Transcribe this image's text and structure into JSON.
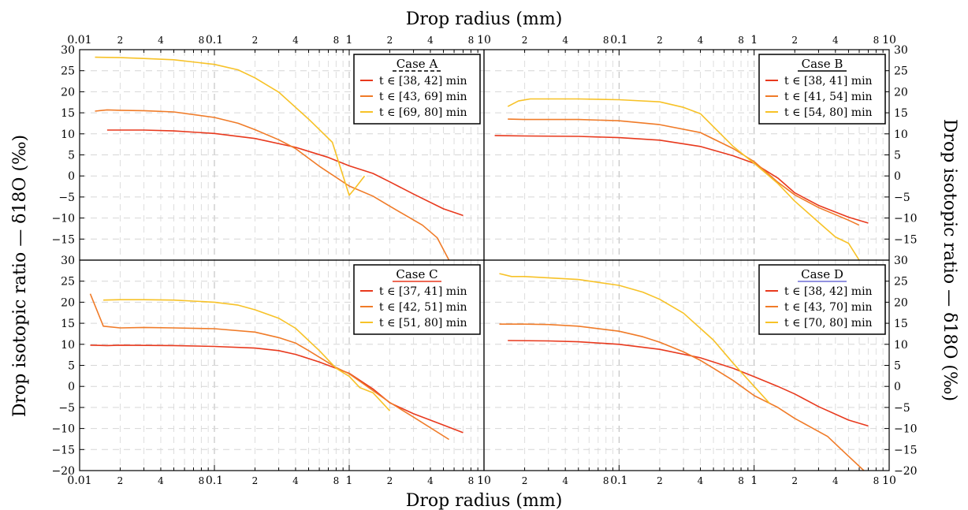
{
  "figure": {
    "top_xlabel": "Drop radius (mm)",
    "bottom_xlabel": "Drop radius (mm)",
    "left_ylabel": "Drop isotopic ratio — δ18O (‰)",
    "right_ylabel": "Drop isotopic ratio — δ18O (‰)"
  },
  "colors": {
    "red": "#e8391d",
    "orange": "#f07b28",
    "yellow": "#f7c227"
  },
  "axes": {
    "x_scale": "log",
    "xlim": [
      0.01,
      10
    ],
    "x_major_labels": [
      "0.01",
      "0.1",
      "1",
      "10"
    ],
    "x_minor_labels": [
      "2",
      "4",
      "8"
    ],
    "x_major_labels_right": [
      "",
      "0.1",
      "1",
      "10"
    ],
    "ylim_top": [
      -20,
      30
    ],
    "ylim_bottom": [
      -20,
      30
    ],
    "yticks_top_panels": [
      "30",
      "25",
      "20",
      "15",
      "10",
      "5",
      "0",
      "−5",
      "−10",
      "−15"
    ],
    "yticks_bottom_panels": [
      "30",
      "25",
      "20",
      "15",
      "10",
      "5",
      "0",
      "−5",
      "−10",
      "−15",
      "−20"
    ],
    "grid": true
  },
  "chart_data": [
    {
      "type": "line",
      "title": "Case A",
      "title_underline_color": "#000000",
      "legend_position": "top-right",
      "series": [
        {
          "name": "t ∈ [38, 42] min",
          "color": "#e8391d",
          "x": [
            0.016,
            0.03,
            0.05,
            0.1,
            0.2,
            0.4,
            0.7,
            1.0,
            1.5,
            2,
            3,
            5,
            7
          ],
          "y": [
            10.9,
            10.9,
            10.7,
            10.1,
            8.9,
            6.8,
            4.4,
            2.4,
            0.6,
            -1.4,
            -4.3,
            -7.8,
            -9.4
          ]
        },
        {
          "name": "t ∈ [43, 69] min",
          "color": "#f07b28",
          "x": [
            0.013,
            0.016,
            0.02,
            0.03,
            0.05,
            0.1,
            0.15,
            0.2,
            0.3,
            0.4,
            0.6,
            1.0,
            1.5,
            2.0,
            3.5,
            4.5,
            5.5
          ],
          "y": [
            15.4,
            15.7,
            15.6,
            15.5,
            15.2,
            13.9,
            12.5,
            11.0,
            8.6,
            6.5,
            2.3,
            -2.4,
            -4.8,
            -7.2,
            -11.7,
            -14.7,
            -20
          ]
        },
        {
          "name": "t ∈ [69, 80] min",
          "color": "#f7c227",
          "x": [
            0.013,
            0.02,
            0.03,
            0.05,
            0.1,
            0.15,
            0.2,
            0.3,
            0.5,
            0.75,
            1.0,
            1.1,
            1.3
          ],
          "y": [
            28.2,
            28.1,
            27.9,
            27.6,
            26.5,
            25.2,
            23.3,
            19.9,
            13.5,
            8.0,
            -4.6,
            -3.0,
            0.0
          ]
        }
      ]
    },
    {
      "type": "line",
      "title": "Case B",
      "title_underline_color": "#000000",
      "legend_position": "top-right",
      "series": [
        {
          "name": "t ∈ [38, 41] min",
          "color": "#e8391d",
          "x": [
            0.012,
            0.02,
            0.05,
            0.1,
            0.2,
            0.4,
            0.7,
            1.0,
            1.5,
            2,
            3,
            5,
            7
          ],
          "y": [
            9.6,
            9.5,
            9.4,
            9.1,
            8.5,
            7.0,
            4.8,
            3.0,
            -0.5,
            -4.0,
            -7.0,
            -9.8,
            -11.2
          ]
        },
        {
          "name": "t ∈ [41, 54] min",
          "color": "#f07b28",
          "x": [
            0.015,
            0.02,
            0.05,
            0.1,
            0.2,
            0.4,
            0.7,
            1.0,
            1.5,
            2,
            3,
            5,
            6
          ],
          "y": [
            13.5,
            13.4,
            13.4,
            13.1,
            12.2,
            10.3,
            6.5,
            3.4,
            -1.5,
            -4.5,
            -7.5,
            -10.5,
            -11.7
          ]
        },
        {
          "name": "t ∈ [54, 80] min",
          "color": "#f7c227",
          "x": [
            0.015,
            0.018,
            0.022,
            0.03,
            0.05,
            0.1,
            0.2,
            0.3,
            0.4,
            0.7,
            1.0,
            1.5,
            2,
            3,
            4,
            5,
            6
          ],
          "y": [
            16.5,
            17.8,
            18.3,
            18.3,
            18.3,
            18.1,
            17.6,
            16.3,
            14.8,
            7.0,
            3.0,
            -1.8,
            -6.0,
            -11.0,
            -14.5,
            -16.0,
            -20
          ]
        }
      ]
    },
    {
      "type": "line",
      "title": "Case C",
      "title_underline_color": "#e8391d",
      "legend_position": "top-right",
      "series": [
        {
          "name": "t ∈ [37, 41] min",
          "color": "#e8391d",
          "x": [
            0.012,
            0.016,
            0.02,
            0.05,
            0.1,
            0.2,
            0.3,
            0.4,
            0.6,
            0.8,
            1.0,
            1.5,
            2,
            3,
            5,
            7
          ],
          "y": [
            9.8,
            9.7,
            9.8,
            9.7,
            9.5,
            9.1,
            8.5,
            7.6,
            5.8,
            4.3,
            3.1,
            -0.6,
            -3.9,
            -6.5,
            -9.2,
            -11.0
          ]
        },
        {
          "name": "t ∈ [42, 51] min",
          "color": "#f07b28",
          "x": [
            0.012,
            0.015,
            0.02,
            0.03,
            0.05,
            0.1,
            0.2,
            0.3,
            0.4,
            0.5,
            0.8,
            1.0,
            1.5,
            2,
            3,
            5.5
          ],
          "y": [
            22.0,
            14.3,
            13.9,
            14.0,
            13.9,
            13.7,
            12.9,
            11.6,
            10.3,
            8.5,
            4.5,
            3.0,
            -1.0,
            -3.8,
            -7.3,
            -12.6
          ]
        },
        {
          "name": "t ∈ [51, 80] min",
          "color": "#f7c227",
          "x": [
            0.015,
            0.02,
            0.03,
            0.05,
            0.1,
            0.15,
            0.2,
            0.3,
            0.4,
            0.6,
            0.8,
            1.0,
            1.2,
            1.5,
            2.0
          ],
          "y": [
            20.5,
            20.6,
            20.6,
            20.5,
            20.0,
            19.3,
            18.2,
            16.2,
            13.8,
            8.5,
            4.3,
            2.4,
            -0.3,
            -1.5,
            -5.8
          ]
        }
      ]
    },
    {
      "type": "line",
      "title": "Case D",
      "title_underline_color": "#6f6fd6",
      "legend_position": "top-right",
      "series": [
        {
          "name": "t ∈ [38, 42] min",
          "color": "#e8391d",
          "x": [
            0.015,
            0.03,
            0.05,
            0.1,
            0.2,
            0.4,
            0.7,
            1.0,
            1.5,
            2,
            3,
            5,
            7
          ],
          "y": [
            10.9,
            10.8,
            10.6,
            10.0,
            8.8,
            6.8,
            4.3,
            2.3,
            0.0,
            -1.8,
            -4.8,
            -8.0,
            -9.4
          ]
        },
        {
          "name": "t ∈ [43, 70] min",
          "color": "#f07b28",
          "x": [
            0.013,
            0.02,
            0.03,
            0.05,
            0.1,
            0.15,
            0.2,
            0.3,
            0.4,
            0.5,
            0.7,
            1.0,
            1.5,
            2,
            3.5,
            4.5,
            6.5
          ],
          "y": [
            14.8,
            14.8,
            14.7,
            14.3,
            13.1,
            11.8,
            10.5,
            8.2,
            6.2,
            4.3,
            1.4,
            -2.2,
            -5.0,
            -7.6,
            -11.9,
            -15.2,
            -20
          ]
        },
        {
          "name": "t ∈ [70, 80] min",
          "color": "#f7c227",
          "x": [
            0.013,
            0.016,
            0.02,
            0.05,
            0.1,
            0.15,
            0.2,
            0.3,
            0.5,
            0.7,
            1.0,
            1.3
          ],
          "y": [
            26.8,
            26.1,
            26.1,
            25.4,
            24.0,
            22.4,
            20.7,
            17.4,
            11.0,
            5.5,
            0.0,
            -4.0
          ]
        }
      ]
    }
  ]
}
